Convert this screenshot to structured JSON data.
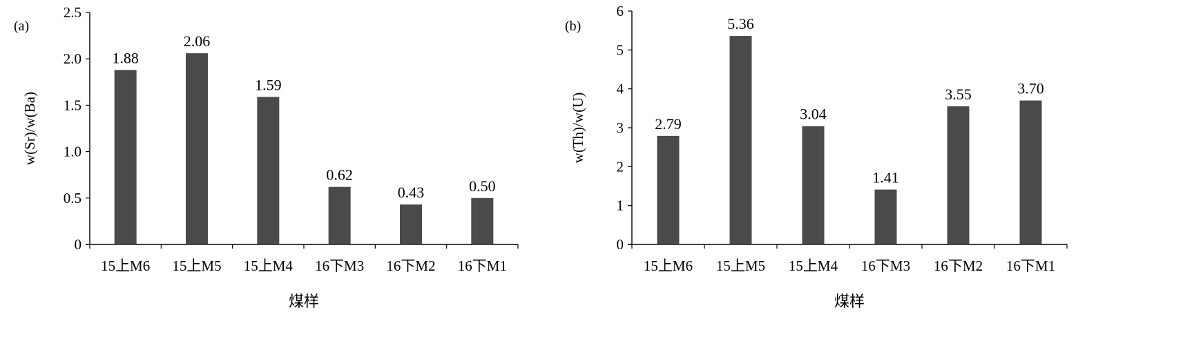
{
  "chart_data": [
    {
      "type": "bar",
      "panel_label": "(a)",
      "categories": [
        "15上M6",
        "15上M5",
        "15上M4",
        "16下M3",
        "16下M2",
        "16下M1"
      ],
      "values": [
        1.88,
        2.06,
        1.59,
        0.62,
        0.43,
        0.5
      ],
      "data_labels": [
        "1.88",
        "2.06",
        "1.59",
        "0.62",
        "0.43",
        "0.50"
      ],
      "xlabel": "煤样",
      "ylabel": "w(Sr)/w(Ba)",
      "ylim": [
        0,
        2.5
      ],
      "yticks": [
        "0",
        "0.5",
        "1.0",
        "1.5",
        "2.0",
        "2.5"
      ],
      "grid": false,
      "bar_color": "#4a4a4a"
    },
    {
      "type": "bar",
      "panel_label": "(b)",
      "categories": [
        "15上M6",
        "15上M5",
        "15上M4",
        "16下M3",
        "16下M2",
        "16下M1"
      ],
      "values": [
        2.79,
        5.36,
        3.04,
        1.41,
        3.55,
        3.7
      ],
      "data_labels": [
        "2.79",
        "5.36",
        "3.04",
        "1.41",
        "3.55",
        "3.70"
      ],
      "xlabel": "煤样",
      "ylabel": "w(Th)/w(U)",
      "ylim": [
        0,
        6
      ],
      "yticks": [
        "0",
        "1",
        "2",
        "3",
        "4",
        "5",
        "6"
      ],
      "grid": false,
      "bar_color": "#4a4a4a"
    }
  ]
}
